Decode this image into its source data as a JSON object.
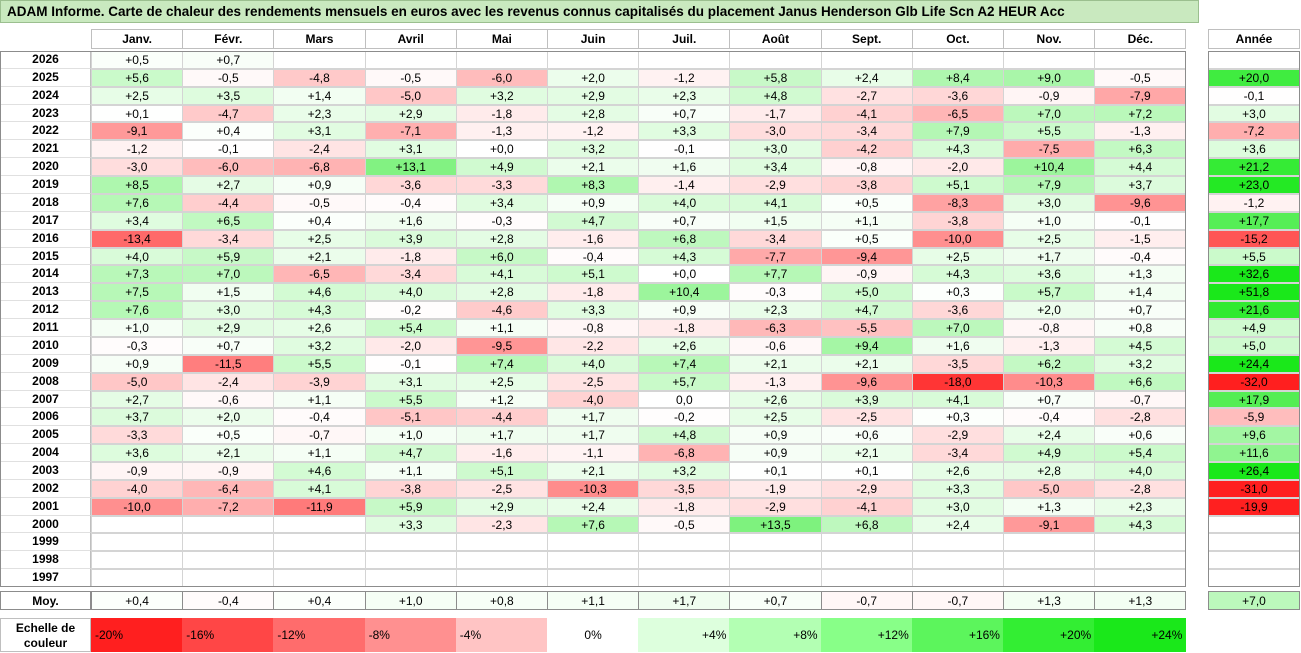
{
  "title": "ADAM Informe. Carte de chaleur des rendements mensuels en euros avec les revenus connus capitalisés du placement Janus Henderson Glb Life Scn A2 HEUR Acc",
  "chart_data": {
    "type": "heatmap",
    "columns": [
      "Janv.",
      "Févr.",
      "Mars",
      "Avril",
      "Mai",
      "Juin",
      "Juil.",
      "Août",
      "Sept.",
      "Oct.",
      "Nov.",
      "Déc."
    ],
    "year_header": "Année",
    "rows": [
      {
        "year": "2026",
        "months": [
          "+0,5",
          "+0,7",
          "",
          "",
          "",
          "",
          "",
          "",
          "",
          "",
          "",
          ""
        ],
        "annual": ""
      },
      {
        "year": "2025",
        "months": [
          "+5,6",
          "-0,5",
          "-4,8",
          "-0,5",
          "-6,0",
          "+2,0",
          "-1,2",
          "+5,8",
          "+2,4",
          "+8,4",
          "+9,0",
          "-0,5"
        ],
        "annual": "+20,0"
      },
      {
        "year": "2024",
        "months": [
          "+2,5",
          "+3,5",
          "+1,4",
          "-5,0",
          "+3,2",
          "+2,9",
          "+2,3",
          "+4,8",
          "-2,7",
          "-3,6",
          "-0,9",
          "-7,9"
        ],
        "annual": "-0,1"
      },
      {
        "year": "2023",
        "months": [
          "+0,1",
          "-4,7",
          "+2,3",
          "+2,9",
          "-1,8",
          "+2,8",
          "+0,7",
          "-1,7",
          "-4,1",
          "-6,5",
          "+7,0",
          "+7,2"
        ],
        "annual": "+3,0"
      },
      {
        "year": "2022",
        "months": [
          "-9,1",
          "+0,4",
          "+3,1",
          "-7,1",
          "-1,3",
          "-1,2",
          "+3,3",
          "-3,0",
          "-3,4",
          "+7,9",
          "+5,5",
          "-1,3"
        ],
        "annual": "-7,2"
      },
      {
        "year": "2021",
        "months": [
          "-1,2",
          "-0,1",
          "-2,4",
          "+3,1",
          "+0,0",
          "+3,2",
          "-0,1",
          "+3,0",
          "-4,2",
          "+4,3",
          "-7,5",
          "+6,3"
        ],
        "annual": "+3,6"
      },
      {
        "year": "2020",
        "months": [
          "-3,0",
          "-6,0",
          "-6,8",
          "+13,1",
          "+4,9",
          "+2,1",
          "+1,6",
          "+3,4",
          "-0,8",
          "-2,0",
          "+10,4",
          "+4,4"
        ],
        "annual": "+21,2"
      },
      {
        "year": "2019",
        "months": [
          "+8,5",
          "+2,7",
          "+0,9",
          "-3,6",
          "-3,3",
          "+8,3",
          "-1,4",
          "-2,9",
          "-3,8",
          "+5,1",
          "+7,9",
          "+3,7"
        ],
        "annual": "+23,0"
      },
      {
        "year": "2018",
        "months": [
          "+7,6",
          "-4,4",
          "-0,5",
          "-0,4",
          "+3,4",
          "+0,9",
          "+4,0",
          "+4,1",
          "+0,5",
          "-8,3",
          "+3,0",
          "-9,6"
        ],
        "annual": "-1,2"
      },
      {
        "year": "2017",
        "months": [
          "+3,4",
          "+6,5",
          "+0,4",
          "+1,6",
          "-0,3",
          "+4,7",
          "+0,7",
          "+1,5",
          "+1,1",
          "-3,8",
          "+1,0",
          "-0,1"
        ],
        "annual": "+17,7"
      },
      {
        "year": "2016",
        "months": [
          "-13,4",
          "-3,4",
          "+2,5",
          "+3,9",
          "+2,8",
          "-1,6",
          "+6,8",
          "-3,4",
          "+0,5",
          "-10,0",
          "+2,5",
          "-1,5"
        ],
        "annual": "-15,2"
      },
      {
        "year": "2015",
        "months": [
          "+4,0",
          "+5,9",
          "+2,1",
          "-1,8",
          "+6,0",
          "-0,4",
          "+4,3",
          "-7,7",
          "-9,4",
          "+2,5",
          "+1,7",
          "-0,4"
        ],
        "annual": "+5,5"
      },
      {
        "year": "2014",
        "months": [
          "+7,3",
          "+7,0",
          "-6,5",
          "-3,4",
          "+4,1",
          "+5,1",
          "+0,0",
          "+7,7",
          "-0,9",
          "+4,3",
          "+3,6",
          "+1,3"
        ],
        "annual": "+32,6"
      },
      {
        "year": "2013",
        "months": [
          "+7,5",
          "+1,5",
          "+4,6",
          "+4,0",
          "+2,8",
          "-1,8",
          "+10,4",
          "-0,3",
          "+5,0",
          "+0,3",
          "+5,7",
          "+1,4"
        ],
        "annual": "+51,8"
      },
      {
        "year": "2012",
        "months": [
          "+7,6",
          "+3,0",
          "+4,3",
          "-0,2",
          "-4,6",
          "+3,3",
          "+0,9",
          "+2,3",
          "+4,7",
          "-3,6",
          "+2,0",
          "+0,7"
        ],
        "annual": "+21,6"
      },
      {
        "year": "2011",
        "months": [
          "+1,0",
          "+2,9",
          "+2,6",
          "+5,4",
          "+1,1",
          "-0,8",
          "-1,8",
          "-6,3",
          "-5,5",
          "+7,0",
          "-0,8",
          "+0,8"
        ],
        "annual": "+4,9"
      },
      {
        "year": "2010",
        "months": [
          "-0,3",
          "+0,7",
          "+3,2",
          "-2,0",
          "-9,5",
          "-2,2",
          "+2,6",
          "-0,6",
          "+9,4",
          "+1,6",
          "-1,3",
          "+4,5"
        ],
        "annual": "+5,0"
      },
      {
        "year": "2009",
        "months": [
          "+0,9",
          "-11,5",
          "+5,5",
          "-0,1",
          "+7,4",
          "+4,0",
          "+7,4",
          "+2,1",
          "+2,1",
          "-3,5",
          "+6,2",
          "+3,2"
        ],
        "annual": "+24,4"
      },
      {
        "year": "2008",
        "months": [
          "-5,0",
          "-2,4",
          "-3,9",
          "+3,1",
          "+2,5",
          "-2,5",
          "+5,7",
          "-1,3",
          "-9,6",
          "-18,0",
          "-10,3",
          "+6,6"
        ],
        "annual": "-32,0"
      },
      {
        "year": "2007",
        "months": [
          "+2,7",
          "-0,6",
          "+1,1",
          "+5,5",
          "+1,2",
          "-4,0",
          "0,0",
          "+2,6",
          "+3,9",
          "+4,1",
          "+0,7",
          "-0,7"
        ],
        "annual": "+17,9"
      },
      {
        "year": "2006",
        "months": [
          "+3,7",
          "+2,0",
          "-0,4",
          "-5,1",
          "-4,4",
          "+1,7",
          "-0,2",
          "+2,5",
          "-2,5",
          "+0,3",
          "-0,4",
          "-2,8"
        ],
        "annual": "-5,9"
      },
      {
        "year": "2005",
        "months": [
          "-3,3",
          "+0,5",
          "-0,7",
          "+1,0",
          "+1,7",
          "+1,7",
          "+4,8",
          "+0,9",
          "+0,6",
          "-2,9",
          "+2,4",
          "+0,6"
        ],
        "annual": "+9,6"
      },
      {
        "year": "2004",
        "months": [
          "+3,6",
          "+2,1",
          "+1,1",
          "+4,7",
          "-1,6",
          "-1,1",
          "-6,8",
          "+0,9",
          "+2,1",
          "-3,4",
          "+4,9",
          "+5,4"
        ],
        "annual": "+11,6"
      },
      {
        "year": "2003",
        "months": [
          "-0,9",
          "-0,9",
          "+4,6",
          "+1,1",
          "+5,1",
          "+2,1",
          "+3,2",
          "+0,1",
          "+0,1",
          "+2,6",
          "+2,8",
          "+4,0"
        ],
        "annual": "+26,4"
      },
      {
        "year": "2002",
        "months": [
          "-4,0",
          "-6,4",
          "+4,1",
          "-3,8",
          "-2,5",
          "-10,3",
          "-3,5",
          "-1,9",
          "-2,9",
          "+3,3",
          "-5,0",
          "-2,8"
        ],
        "annual": "-31,0"
      },
      {
        "year": "2001",
        "months": [
          "-10,0",
          "-7,2",
          "-11,9",
          "+5,9",
          "+2,9",
          "+2,4",
          "-1,8",
          "-2,9",
          "-4,1",
          "+3,0",
          "+1,3",
          "+2,3"
        ],
        "annual": "-19,9"
      },
      {
        "year": "2000",
        "months": [
          "",
          "",
          "",
          "+3,3",
          "-2,3",
          "+7,6",
          "-0,5",
          "+13,5",
          "+6,8",
          "+2,4",
          "-9,1",
          "+4,3"
        ],
        "annual": ""
      },
      {
        "year": "1999",
        "months": [
          "",
          "",
          "",
          "",
          "",
          "",
          "",
          "",
          "",
          "",
          "",
          ""
        ],
        "annual": ""
      },
      {
        "year": "1998",
        "months": [
          "",
          "",
          "",
          "",
          "",
          "",
          "",
          "",
          "",
          "",
          "",
          ""
        ],
        "annual": ""
      },
      {
        "year": "1997",
        "months": [
          "",
          "",
          "",
          "",
          "",
          "",
          "",
          "",
          "",
          "",
          "",
          ""
        ],
        "annual": ""
      }
    ],
    "average": {
      "label": "Moy.",
      "months": [
        "+0,4",
        "-0,4",
        "+0,4",
        "+1,0",
        "+0,8",
        "+1,1",
        "+1,7",
        "+0,7",
        "-0,7",
        "-0,7",
        "+1,3",
        "+1,3"
      ],
      "annual": "+7,0"
    },
    "scale": {
      "label_line1": "Echelle de",
      "label_line2": "couleur",
      "stops": [
        {
          "label": "-20%",
          "value": -20,
          "color": "#ff1f1f"
        },
        {
          "label": "-16%",
          "value": -16,
          "color": "#ff4646"
        },
        {
          "label": "-12%",
          "value": -12,
          "color": "#ff6c6c"
        },
        {
          "label": "-8%",
          "value": -8,
          "color": "#ff9090"
        },
        {
          "label": "-4%",
          "value": -4,
          "color": "#ffc4c4"
        },
        {
          "label": "0%",
          "value": 0,
          "color": "#ffffff"
        },
        {
          "label": "+4%",
          "value": 4,
          "color": "#ddffdd"
        },
        {
          "label": "+8%",
          "value": 8,
          "color": "#b3ffb3"
        },
        {
          "label": "+12%",
          "value": 12,
          "color": "#88ff88"
        },
        {
          "label": "+16%",
          "value": 16,
          "color": "#5cf55c"
        },
        {
          "label": "+20%",
          "value": 20,
          "color": "#33ee33"
        },
        {
          "label": "+24%",
          "value": 24,
          "color": "#1ae81a"
        }
      ]
    }
  }
}
